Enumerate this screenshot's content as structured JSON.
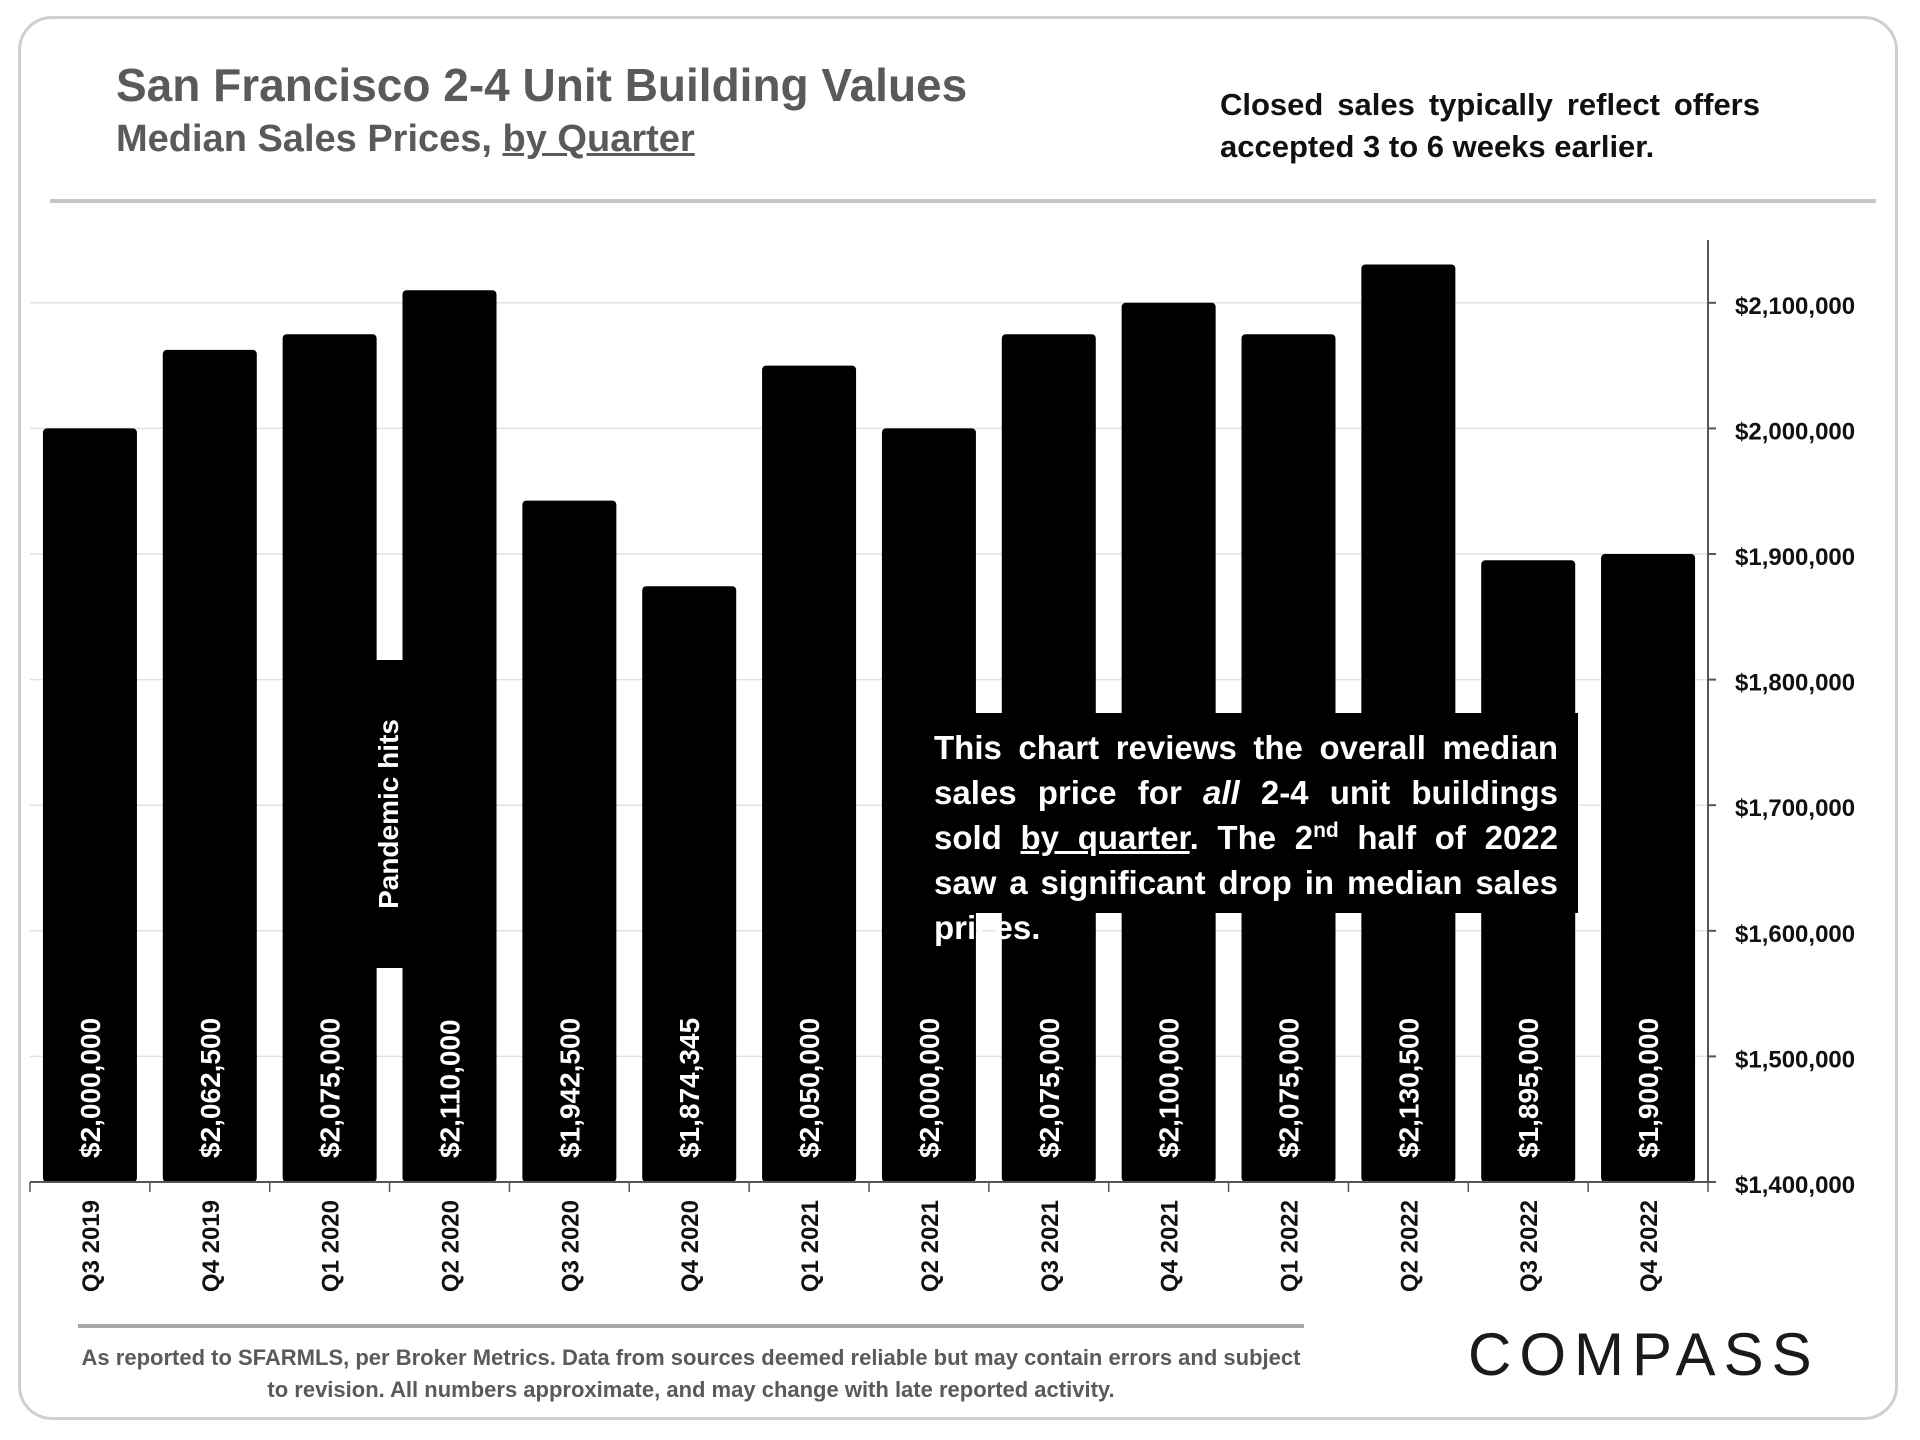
{
  "header": {
    "title": "San Francisco 2-4 Unit Building Values",
    "subtitle_prefix": "Median Sales Prices, ",
    "subtitle_underlined": "by Quarter",
    "note": "Closed sales typically reflect offers accepted 3 to 6 weeks earlier."
  },
  "callout": {
    "part1": "This chart reviews the overall median sales price for ",
    "part2_italic": "all",
    "part3": " 2-4 unit buildings sold ",
    "part4_underlined": "by quarter",
    "part5": ". The 2",
    "part6_sup": "nd",
    "part7": " half of 2022 saw a significant drop in median sales prices."
  },
  "annotation": {
    "pandemic": "Pandemic hits"
  },
  "footer": {
    "source": "As reported to SFARMLS, per Broker Metrics. Data from sources deemed reliable but may contain errors and subject to revision. All numbers approximate, and may change with late reported activity.",
    "logo": "COMPASS"
  },
  "colors": {
    "bars": "#000000",
    "grid": "#e2e2e2",
    "axis": "#555555",
    "title": "#5a5a5a"
  },
  "chart_data": {
    "type": "bar",
    "title": "San Francisco 2-4 Unit Building Values",
    "subtitle": "Median Sales Prices, by Quarter",
    "categories": [
      "Q3 2019",
      "Q4 2019",
      "Q1 2020",
      "Q2 2020",
      "Q3 2020",
      "Q4 2020",
      "Q1 2021",
      "Q2 2021",
      "Q3 2021",
      "Q4 2021",
      "Q1 2022",
      "Q2 2022",
      "Q3 2022",
      "Q4 2022"
    ],
    "values": [
      2000000,
      2062500,
      2075000,
      2110000,
      1942500,
      1874345,
      2050000,
      2000000,
      2075000,
      2100000,
      2075000,
      2130500,
      1895000,
      1900000
    ],
    "data_labels": [
      "$2,000,000",
      "$2,062,500",
      "$2,075,000",
      "$2,110,000",
      "$1,942,500",
      "$1,874,345",
      "$2,050,000",
      "$2,000,000",
      "$2,075,000",
      "$2,100,000",
      "$2,075,000",
      "$2,130,500",
      "$1,895,000",
      "$1,900,000"
    ],
    "y_ticks": [
      1400000,
      1500000,
      1600000,
      1700000,
      1800000,
      1900000,
      2000000,
      2100000
    ],
    "y_tick_labels": [
      "$1,400,000",
      "$1,500,000",
      "$1,600,000",
      "$1,700,000",
      "$1,800,000",
      "$1,900,000",
      "$2,000,000",
      "$2,100,000"
    ],
    "ylim": [
      1400000,
      2150000
    ],
    "y_axis_side": "right",
    "grid": true,
    "xlabel": "",
    "ylabel": ""
  }
}
